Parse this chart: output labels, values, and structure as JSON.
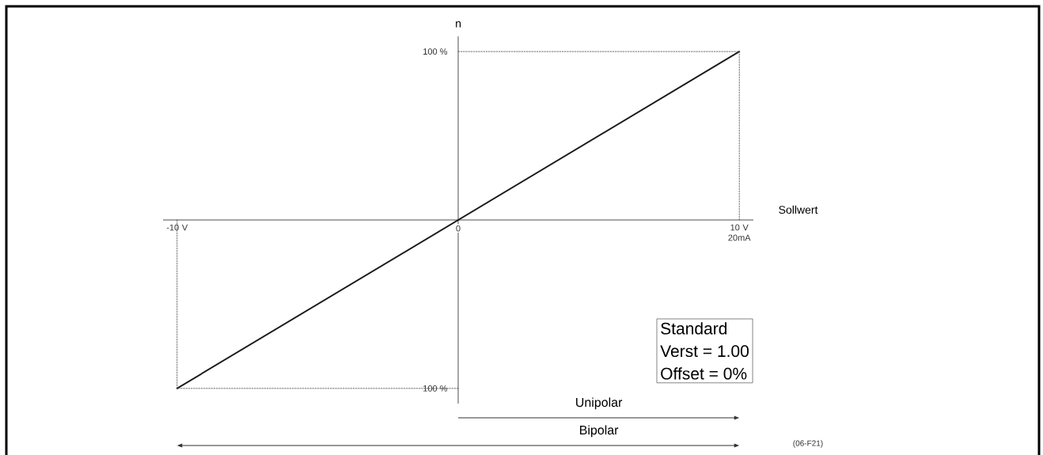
{
  "chart_data": {
    "type": "line",
    "xlabel": "Sollwert",
    "ylabel": "n",
    "annotations": [
      "Standard",
      "Verst = 1.00",
      "Offset = 0%",
      "Unipolar",
      "Bipolar",
      "(06-F21)"
    ],
    "x": [
      -10,
      10
    ],
    "series": [
      {
        "color": "#1a1a1a",
        "values": [
          -100,
          100
        ],
        "line_style": "solid"
      },
      {
        "color": "#4d4d4d",
        "x": [
          0,
          10,
          10
        ],
        "values": [
          100,
          100,
          0
        ],
        "line_style": "dotted"
      },
      {
        "color": "#4d4d4d",
        "x": [
          -10,
          -10,
          0
        ],
        "values": [
          0,
          -100,
          -100
        ],
        "line_style": "dotted"
      }
    ],
    "xlim": [
      -10.5,
      10.5
    ],
    "ylim": [
      -109,
      109
    ],
    "xticks": [
      {
        "value": -10,
        "label": "-10 V"
      },
      0,
      {
        "value": 10,
        "label": "10 V 20mA"
      }
    ],
    "yticks": [
      {
        "value": 100,
        "label": "100 %"
      },
      {
        "value": -100,
        "label": "100 %"
      }
    ],
    "marker": "none"
  }
}
